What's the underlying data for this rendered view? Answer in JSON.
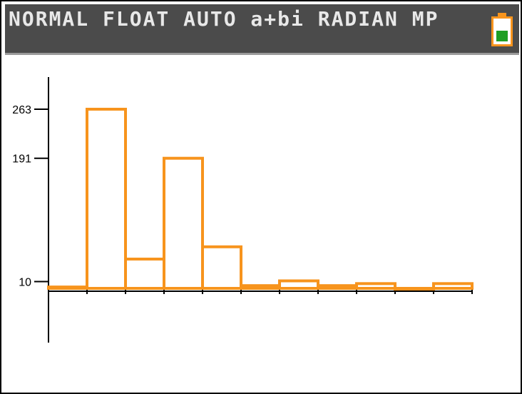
{
  "status_bar": {
    "text": "NORMAL FLOAT AUTO a+bi RADIAN MP",
    "battery_level": 0.55,
    "battery_color": "#1e9e24",
    "accent_color": "#f7941d"
  },
  "chart_data": {
    "type": "bar",
    "style": "histogram-outline",
    "bar_color": "#f7941d",
    "values": [
      2,
      263,
      43,
      191,
      61,
      4,
      11,
      4,
      7,
      0,
      7
    ],
    "y_ticks": [
      10,
      191,
      263
    ],
    "y_tick_labels": [
      "10",
      "191",
      "263"
    ],
    "x_tick_count": 12,
    "ylim": [
      -10,
      300
    ],
    "title": "",
    "xlabel": "",
    "ylabel": ""
  }
}
